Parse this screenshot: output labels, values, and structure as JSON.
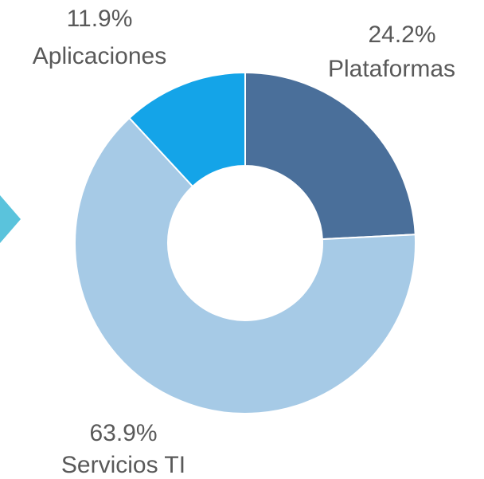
{
  "chart_data": {
    "type": "donut",
    "categories": [
      "Plataformas",
      "Servicios TI",
      "Aplicaciones"
    ],
    "values": [
      24.2,
      63.9,
      11.9
    ],
    "value_labels": [
      "24.2%",
      "63.9%",
      "11.9%"
    ],
    "colors": [
      "#4a6f9a",
      "#a6cae6",
      "#14a4e8"
    ]
  }
}
